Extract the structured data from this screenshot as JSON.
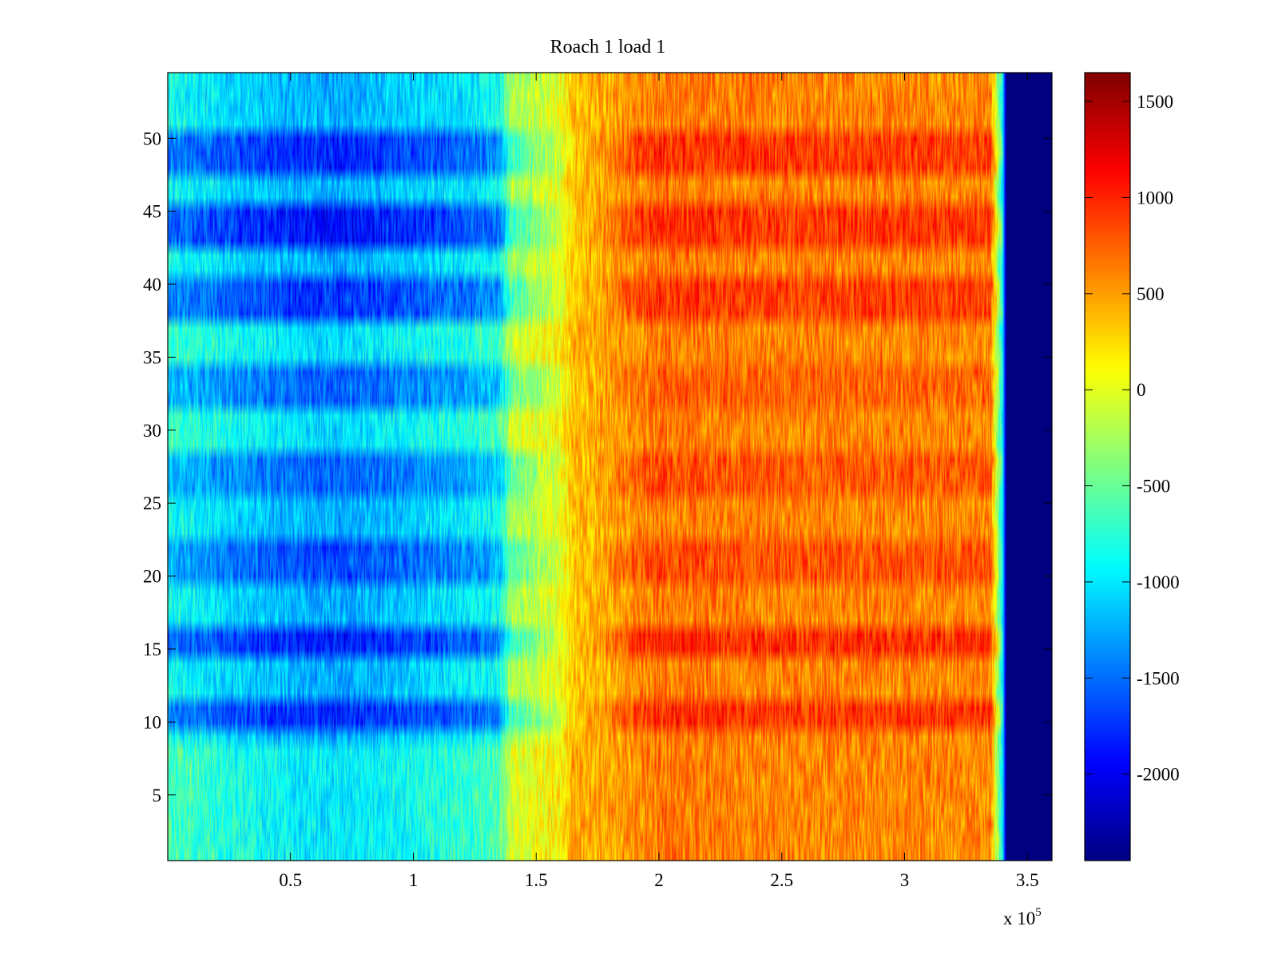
{
  "chart_data": {
    "type": "heatmap",
    "title": "Roach 1 load 1",
    "xlabel": "",
    "ylabel": "",
    "x_multiplier_label": {
      "base": "x 10",
      "exponent": "5"
    },
    "xlim": [
      0,
      360000
    ],
    "ylim": [
      0.5,
      54.5
    ],
    "rows": 54,
    "x_ticks": [
      {
        "value": 50000,
        "label": "0.5"
      },
      {
        "value": 100000,
        "label": "1"
      },
      {
        "value": 150000,
        "label": "1.5"
      },
      {
        "value": 200000,
        "label": "2"
      },
      {
        "value": 250000,
        "label": "2.5"
      },
      {
        "value": 300000,
        "label": "3"
      },
      {
        "value": 350000,
        "label": "3.5"
      }
    ],
    "y_ticks": [
      {
        "value": 5,
        "label": "5"
      },
      {
        "value": 10,
        "label": "10"
      },
      {
        "value": 15,
        "label": "15"
      },
      {
        "value": 20,
        "label": "20"
      },
      {
        "value": 25,
        "label": "25"
      },
      {
        "value": 30,
        "label": "30"
      },
      {
        "value": 35,
        "label": "35"
      },
      {
        "value": 40,
        "label": "40"
      },
      {
        "value": 45,
        "label": "45"
      },
      {
        "value": 50,
        "label": "50"
      }
    ],
    "colorbar": {
      "colormap": "jet",
      "clim": [
        -2450,
        1650
      ],
      "ticks": [
        {
          "value": 1500,
          "label": "1500"
        },
        {
          "value": 1000,
          "label": "1000"
        },
        {
          "value": 500,
          "label": "500"
        },
        {
          "value": 0,
          "label": "0"
        },
        {
          "value": -500,
          "label": "-500"
        },
        {
          "value": -1000,
          "label": "-1000"
        },
        {
          "value": -1500,
          "label": "-1500"
        },
        {
          "value": -2000,
          "label": "-2000"
        }
      ]
    },
    "x_profile": [
      {
        "x": 0,
        "value": -850
      },
      {
        "x": 25000,
        "value": -1050
      },
      {
        "x": 50000,
        "value": -1200
      },
      {
        "x": 70000,
        "value": -1250
      },
      {
        "x": 100000,
        "value": -1100
      },
      {
        "x": 125000,
        "value": -950
      },
      {
        "x": 135000,
        "value": -850
      },
      {
        "x": 140000,
        "value": -250
      },
      {
        "x": 150000,
        "value": -100
      },
      {
        "x": 160000,
        "value": 50
      },
      {
        "x": 165000,
        "value": 350
      },
      {
        "x": 180000,
        "value": 450
      },
      {
        "x": 200000,
        "value": 650
      },
      {
        "x": 250000,
        "value": 600
      },
      {
        "x": 300000,
        "value": 600
      },
      {
        "x": 335000,
        "value": 600
      },
      {
        "x": 340000,
        "value": -1000
      },
      {
        "x": 341500,
        "value": -2450
      },
      {
        "x": 360000,
        "value": -2450
      }
    ],
    "row_offsets": [
      {
        "rows": [
          38,
          39,
          40
        ],
        "offset_left": -500,
        "offset_right": 280
      },
      {
        "rows": [
          43,
          44,
          45
        ],
        "offset_left": -650,
        "offset_right": 320
      },
      {
        "rows": [
          48,
          49,
          50
        ],
        "offset_left": -550,
        "offset_right": 300
      },
      {
        "rows": [
          15,
          16
        ],
        "offset_left": -600,
        "offset_right": 350
      },
      {
        "rows": [
          10,
          11
        ],
        "offset_left": -550,
        "offset_right": 330
      },
      {
        "rows": [
          20,
          21,
          22
        ],
        "offset_left": -400,
        "offset_right": 200
      },
      {
        "rows": [
          26,
          27,
          28
        ],
        "offset_left": -300,
        "offset_right": 180
      },
      {
        "rows": [
          32,
          33,
          34
        ],
        "offset_left": -300,
        "offset_right": 120
      },
      {
        "rows": [
          1,
          2,
          3,
          4,
          5,
          6,
          7,
          8
        ],
        "offset_left": 250,
        "offset_right": 0
      },
      {
        "rows": [
          29,
          30,
          31
        ],
        "offset_left": 200,
        "offset_right": 0
      },
      {
        "rows": [
          35,
          36,
          37
        ],
        "offset_left": 200,
        "offset_right": 0
      }
    ],
    "noise_amplitude": 300
  }
}
